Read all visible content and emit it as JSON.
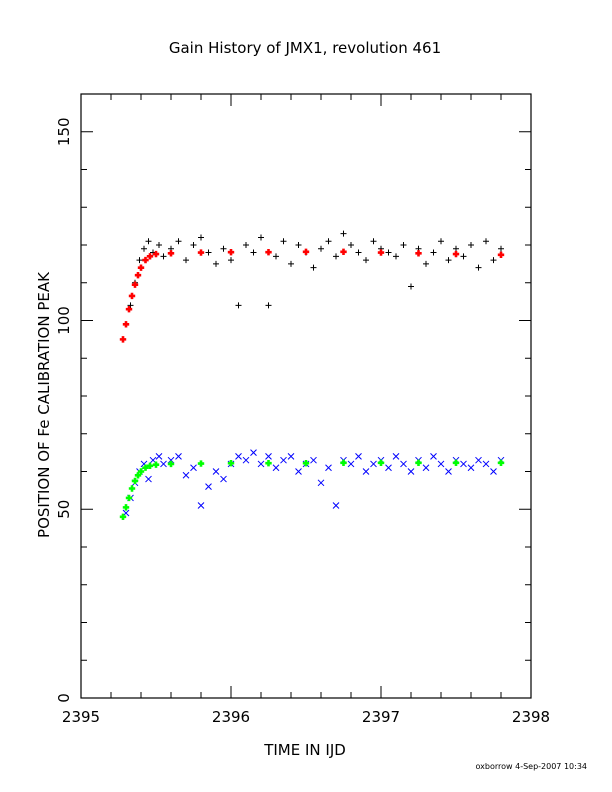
{
  "chart_data": {
    "type": "scatter",
    "title": "Gain History of JMX1, revolution 461",
    "xlabel": "TIME IN IJD",
    "ylabel": "POSITION OF Fe CALIBRATION PEAK",
    "footer": "oxborrow  4-Sep-2007 10:34",
    "xlim": [
      2395,
      2398
    ],
    "ylim": [
      0,
      160
    ],
    "xticks": [
      2395,
      2396,
      2397,
      2398
    ],
    "xtick_labels": [
      "2395",
      "2396",
      "2397",
      "2398"
    ],
    "yticks": [
      0,
      50,
      100,
      150
    ],
    "ytick_labels": [
      "0",
      "50",
      "100",
      "150"
    ],
    "grid": false,
    "series": [
      {
        "marker": "+",
        "color": "#000000",
        "role": "measured peak position (upper)",
        "x": [
          2395.3,
          2395.33,
          2395.36,
          2395.39,
          2395.42,
          2395.45,
          2395.48,
          2395.52,
          2395.55,
          2395.6,
          2395.65,
          2395.7,
          2395.75,
          2395.8,
          2395.85,
          2395.9,
          2395.95,
          2396.0,
          2396.05,
          2396.1,
          2396.15,
          2396.2,
          2396.25,
          2396.3,
          2396.35,
          2396.4,
          2396.45,
          2396.5,
          2396.55,
          2396.6,
          2396.65,
          2396.7,
          2396.75,
          2396.8,
          2396.85,
          2396.9,
          2396.95,
          2397.0,
          2397.05,
          2397.1,
          2397.15,
          2397.2,
          2397.25,
          2397.3,
          2397.35,
          2397.4,
          2397.45,
          2397.5,
          2397.55,
          2397.6,
          2397.65,
          2397.7,
          2397.75,
          2397.8
        ],
        "y": [
          99,
          104,
          110,
          116,
          119,
          121,
          118,
          120,
          117,
          119,
          121,
          116,
          120,
          122,
          118,
          115,
          119,
          116,
          104,
          120,
          118,
          122,
          104,
          117,
          121,
          115,
          120,
          118,
          114,
          119,
          121,
          117,
          123,
          120,
          118,
          116,
          121,
          119,
          118,
          117,
          120,
          109,
          119,
          115,
          118,
          121,
          116,
          119,
          117,
          120,
          114,
          121,
          116,
          119
        ]
      },
      {
        "marker": "x",
        "color": "#0000ff",
        "role": "measured peak position (lower)",
        "x": [
          2395.3,
          2395.33,
          2395.36,
          2395.39,
          2395.42,
          2395.45,
          2395.48,
          2395.52,
          2395.55,
          2395.6,
          2395.65,
          2395.7,
          2395.75,
          2395.8,
          2395.85,
          2395.9,
          2395.95,
          2396.0,
          2396.05,
          2396.1,
          2396.15,
          2396.2,
          2396.25,
          2396.3,
          2396.35,
          2396.4,
          2396.45,
          2396.5,
          2396.55,
          2396.6,
          2396.65,
          2396.7,
          2396.75,
          2396.8,
          2396.85,
          2396.9,
          2396.95,
          2397.0,
          2397.05,
          2397.1,
          2397.15,
          2397.2,
          2397.25,
          2397.3,
          2397.35,
          2397.4,
          2397.45,
          2397.5,
          2397.55,
          2397.6,
          2397.65,
          2397.7,
          2397.75,
          2397.8
        ],
        "y": [
          49,
          53,
          57,
          60,
          62,
          58,
          63,
          64,
          62,
          63,
          64,
          59,
          61,
          51,
          56,
          60,
          58,
          62,
          64,
          63,
          65,
          62,
          64,
          61,
          63,
          64,
          60,
          62,
          63,
          57,
          61,
          51,
          63,
          62,
          64,
          60,
          62,
          63,
          61,
          64,
          62,
          60,
          63,
          61,
          64,
          62,
          60,
          63,
          62,
          61,
          63,
          62,
          60,
          63
        ]
      },
      {
        "marker": "+",
        "color": "#ff0000",
        "role": "fitted curve (upper)",
        "x": [
          2395.28,
          2395.3,
          2395.32,
          2395.34,
          2395.36,
          2395.38,
          2395.4,
          2395.43,
          2395.46,
          2395.5,
          2395.6,
          2395.8,
          2396.0,
          2396.25,
          2396.5,
          2396.75,
          2397.0,
          2397.25,
          2397.5,
          2397.8
        ],
        "y": [
          95,
          99,
          103,
          106.5,
          109.5,
          112,
          114,
          116,
          117,
          117.6,
          117.8,
          118.0,
          118.1,
          118.1,
          118.2,
          118.2,
          118.0,
          117.8,
          117.6,
          117.4
        ]
      },
      {
        "marker": "+",
        "color": "#00ff00",
        "role": "fitted curve (lower)",
        "x": [
          2395.28,
          2395.3,
          2395.32,
          2395.34,
          2395.36,
          2395.38,
          2395.4,
          2395.43,
          2395.46,
          2395.5,
          2395.6,
          2395.8,
          2396.0,
          2396.25,
          2396.5,
          2396.75,
          2397.0,
          2397.25,
          2397.5,
          2397.8
        ],
        "y": [
          48,
          50.5,
          53,
          55.5,
          57.5,
          59,
          60,
          61,
          61.5,
          61.8,
          62.0,
          62.1,
          62.2,
          62.2,
          62.2,
          62.3,
          62.3,
          62.3,
          62.3,
          62.3
        ]
      }
    ]
  }
}
